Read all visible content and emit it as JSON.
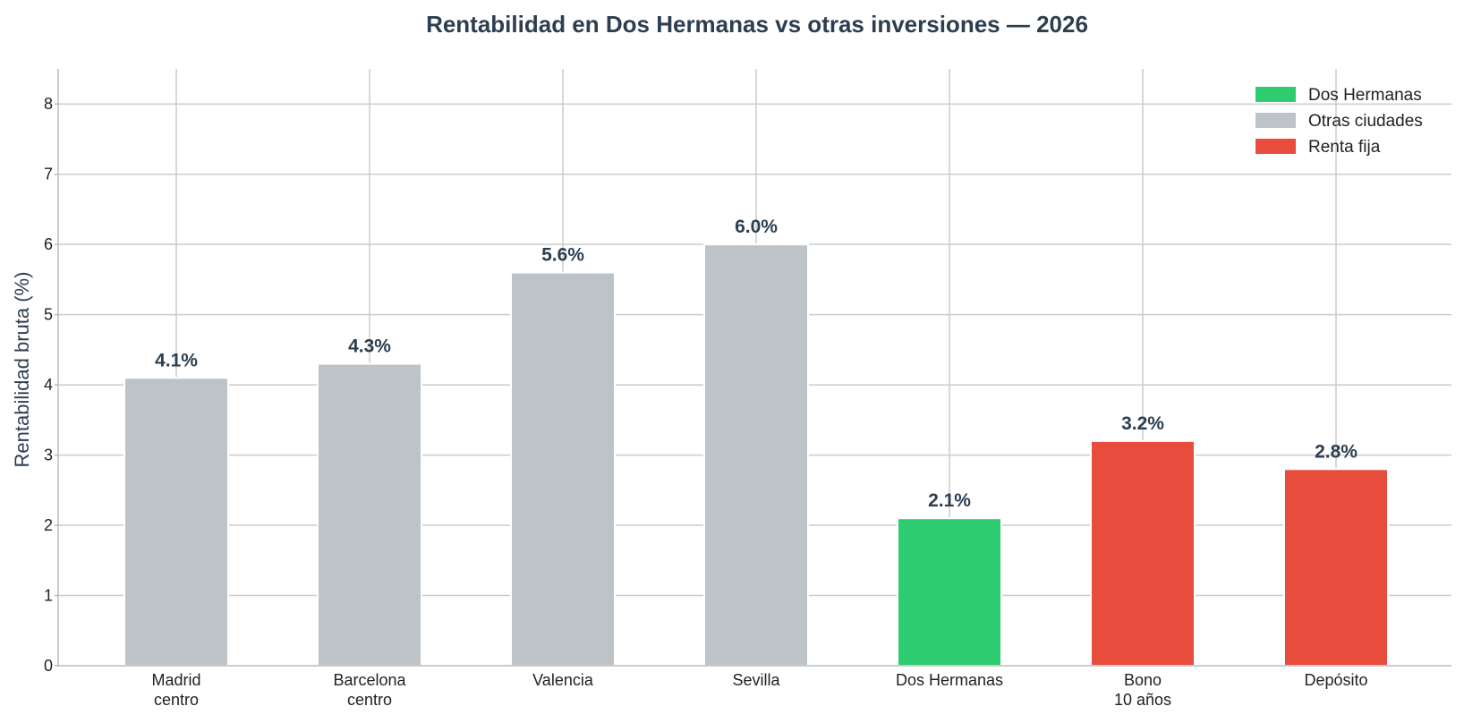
{
  "chart_data": {
    "type": "bar",
    "title": "Rentabilidad en Dos Hermanas vs otras inversiones — 2026",
    "ylabel": "Rentabilidad bruta (%)",
    "xlabel": "",
    "ylim": [
      0,
      8.5
    ],
    "yticks": [
      0,
      1,
      2,
      3,
      4,
      5,
      6,
      7,
      8
    ],
    "grid": true,
    "legend_position": "top-right",
    "categories": [
      [
        "Madrid",
        "centro"
      ],
      [
        "Barcelona",
        "centro"
      ],
      [
        "Valencia"
      ],
      [
        "Sevilla"
      ],
      [
        "Dos Hermanas"
      ],
      [
        "Bono",
        "10 años"
      ],
      [
        "Depósito"
      ]
    ],
    "values": [
      4.1,
      4.3,
      5.6,
      6.0,
      2.1,
      3.2,
      2.8
    ],
    "value_labels": [
      "4.1%",
      "4.3%",
      "5.6%",
      "6.0%",
      "2.1%",
      "3.2%",
      "2.8%"
    ],
    "groups": [
      "Otras ciudades",
      "Otras ciudades",
      "Otras ciudades",
      "Otras ciudades",
      "Dos Hermanas",
      "Renta fija",
      "Renta fija"
    ],
    "legend": [
      {
        "name": "Dos Hermanas",
        "color": "#2ecc71"
      },
      {
        "name": "Otras ciudades",
        "color": "#bdc3c7"
      },
      {
        "name": "Renta fija",
        "color": "#e74c3c"
      }
    ]
  }
}
